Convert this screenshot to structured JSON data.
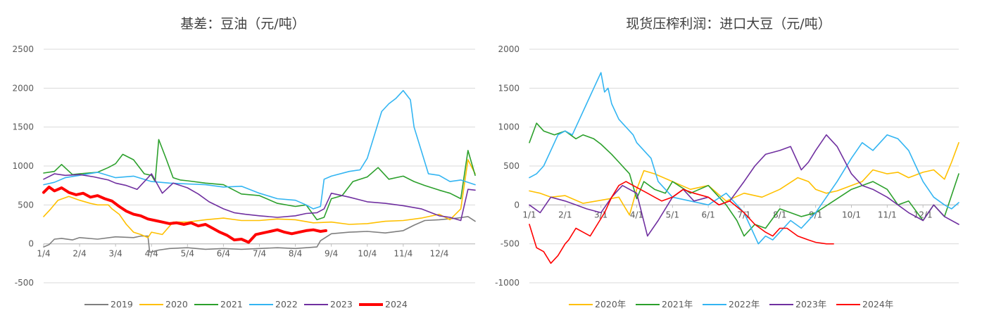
{
  "colors": {
    "c2019": "#7f7f7f",
    "c2020": "#ffc000",
    "c2021": "#2ca02c",
    "c2022": "#33b5f2",
    "c2023": "#7030a0",
    "c2024": "#ff0000",
    "grid": "#d9d9d9",
    "axis": "#bfbfbf",
    "text": "#595959"
  },
  "chart_data": [
    {
      "type": "line",
      "title": "基差：豆油（元/吨）",
      "xlabel": "",
      "ylabel": "",
      "ylim": [
        -500,
        2500
      ],
      "yticks": [
        -500,
        0,
        500,
        1000,
        1500,
        2000,
        2500
      ],
      "xlim": [
        0,
        12
      ],
      "xticks": [
        "1/4",
        "2/4",
        "3/4",
        "4/4",
        "5/4",
        "6/4",
        "7/4",
        "8/4",
        "9/4",
        "10/4",
        "11/4",
        "12/4"
      ],
      "grid": true,
      "legend": "bottom",
      "series": [
        {
          "name": "2019",
          "color_key": "c2019",
          "x": [
            0,
            0.15,
            0.3,
            0.5,
            0.8,
            1.0,
            1.5,
            2.0,
            2.5,
            2.7,
            2.9,
            2.95,
            3.2,
            3.5,
            4.0,
            4.5,
            5.0,
            5.5,
            6.0,
            6.5,
            7.0,
            7.3,
            7.6,
            7.7,
            8.0,
            8.5,
            9.0,
            9.5,
            10.0,
            10.3,
            10.6,
            11.0,
            11.5,
            11.8,
            12.0
          ],
          "y": [
            -40,
            -10,
            60,
            70,
            50,
            80,
            60,
            90,
            80,
            100,
            100,
            -110,
            -80,
            -60,
            -50,
            -70,
            -60,
            -70,
            -60,
            -50,
            -60,
            -50,
            -40,
            40,
            130,
            150,
            160,
            140,
            170,
            240,
            300,
            310,
            330,
            350,
            290
          ]
        },
        {
          "name": "2020",
          "color_key": "c2020",
          "x": [
            0,
            0.2,
            0.4,
            0.7,
            1.0,
            1.3,
            1.5,
            1.8,
            1.9,
            2.1,
            2.3,
            2.5,
            2.7,
            2.9,
            3.0,
            3.3,
            3.6,
            4.0,
            4.5,
            5.0,
            5.5,
            6.0,
            6.5,
            7.0,
            7.5,
            8.0,
            8.5,
            9.0,
            9.5,
            10.0,
            10.5,
            11.0,
            11.3,
            11.6,
            11.8,
            12.0
          ],
          "y": [
            350,
            450,
            560,
            610,
            560,
            520,
            500,
            500,
            450,
            380,
            250,
            150,
            120,
            80,
            150,
            120,
            280,
            280,
            310,
            330,
            300,
            300,
            320,
            310,
            270,
            280,
            250,
            260,
            290,
            300,
            330,
            380,
            310,
            450,
            1080,
            900
          ]
        },
        {
          "name": "2021",
          "color_key": "c2021",
          "x": [
            0,
            0.3,
            0.5,
            0.8,
            1.0,
            1.5,
            1.8,
            2.0,
            2.2,
            2.5,
            2.8,
            3.0,
            3.1,
            3.2,
            3.4,
            3.6,
            3.8,
            4.0,
            4.5,
            5.0,
            5.5,
            6.0,
            6.5,
            7.0,
            7.3,
            7.6,
            7.8,
            8.0,
            8.3,
            8.6,
            9.0,
            9.3,
            9.6,
            10.0,
            10.3,
            10.6,
            11.0,
            11.3,
            11.6,
            11.8,
            12.0
          ],
          "y": [
            910,
            930,
            1020,
            890,
            900,
            920,
            980,
            1030,
            1150,
            1080,
            900,
            880,
            800,
            1340,
            1100,
            850,
            820,
            810,
            780,
            760,
            640,
            620,
            520,
            480,
            500,
            310,
            340,
            580,
            620,
            800,
            860,
            980,
            830,
            870,
            800,
            750,
            690,
            650,
            580,
            1200,
            880
          ]
        },
        {
          "name": "2022",
          "color_key": "c2022",
          "x": [
            0,
            0.3,
            0.6,
            1.0,
            1.5,
            2.0,
            2.5,
            3.0,
            3.5,
            4.0,
            4.5,
            5.0,
            5.5,
            6.0,
            6.5,
            7.0,
            7.3,
            7.5,
            7.7,
            7.8,
            8.0,
            8.5,
            8.8,
            9.0,
            9.2,
            9.4,
            9.6,
            9.8,
            10.0,
            10.2,
            10.3,
            10.5,
            10.7,
            11.0,
            11.3,
            11.6,
            12.0
          ],
          "y": [
            760,
            790,
            850,
            880,
            920,
            850,
            870,
            800,
            780,
            770,
            760,
            730,
            740,
            650,
            580,
            560,
            500,
            450,
            480,
            830,
            870,
            930,
            950,
            1100,
            1400,
            1700,
            1800,
            1870,
            1970,
            1850,
            1500,
            1200,
            900,
            880,
            800,
            820,
            760
          ]
        },
        {
          "name": "2023",
          "color_key": "c2023",
          "x": [
            0,
            0.3,
            0.6,
            1.0,
            1.4,
            1.8,
            2.0,
            2.3,
            2.6,
            3.0,
            3.3,
            3.6,
            4.0,
            4.3,
            4.6,
            5.0,
            5.3,
            5.6,
            6.0,
            6.5,
            7.0,
            7.3,
            7.6,
            7.8,
            8.0,
            8.5,
            9.0,
            9.5,
            10.0,
            10.5,
            11.0,
            11.3,
            11.6,
            11.8,
            12.0
          ],
          "y": [
            830,
            900,
            880,
            890,
            860,
            820,
            780,
            750,
            700,
            900,
            650,
            780,
            720,
            640,
            540,
            450,
            400,
            380,
            360,
            340,
            360,
            390,
            400,
            450,
            650,
            600,
            540,
            520,
            490,
            450,
            360,
            340,
            300,
            700,
            690
          ]
        },
        {
          "name": "2024",
          "color_key": "c2024",
          "x": [
            0,
            0.15,
            0.3,
            0.5,
            0.7,
            0.9,
            1.1,
            1.3,
            1.5,
            1.7,
            1.9,
            2.1,
            2.3,
            2.5,
            2.7,
            2.9,
            3.1,
            3.3,
            3.5,
            3.7,
            3.9,
            4.1,
            4.3,
            4.5,
            4.7,
            4.9,
            5.1,
            5.3,
            5.5,
            5.7,
            5.9,
            6.1,
            6.3,
            6.5,
            6.7,
            6.9,
            7.1,
            7.3,
            7.5,
            7.7,
            7.85
          ],
          "y": [
            660,
            730,
            680,
            720,
            660,
            630,
            650,
            600,
            620,
            580,
            550,
            480,
            420,
            380,
            360,
            320,
            300,
            280,
            260,
            270,
            250,
            270,
            230,
            250,
            200,
            150,
            110,
            50,
            60,
            20,
            120,
            140,
            160,
            180,
            150,
            130,
            150,
            170,
            180,
            160,
            170
          ]
        }
      ]
    },
    {
      "type": "line",
      "title": "现货压榨利润：进口大豆（元/吨）",
      "xlabel": "",
      "ylabel": "",
      "ylim": [
        -1000,
        2000
      ],
      "yticks": [
        -1000,
        -500,
        0,
        500,
        1000,
        1500,
        2000
      ],
      "xlim": [
        0,
        12
      ],
      "xticks": [
        "1/1",
        "2/1",
        "3/1",
        "4/1",
        "5/1",
        "6/1",
        "7/1",
        "8/1",
        "9/1",
        "10/1",
        "11/1",
        "12/1"
      ],
      "grid": true,
      "legend": "bottom",
      "series": [
        {
          "name": "2020年",
          "color_key": "c2020",
          "x": [
            0,
            0.3,
            0.6,
            1.0,
            1.5,
            2.0,
            2.5,
            2.8,
            3.0,
            3.2,
            3.5,
            4.0,
            4.5,
            5.0,
            5.5,
            6.0,
            6.5,
            7.0,
            7.5,
            7.8,
            8.0,
            8.3,
            8.6,
            9.0,
            9.3,
            9.6,
            10.0,
            10.3,
            10.6,
            11.0,
            11.3,
            11.6,
            11.8,
            12.0
          ],
          "y": [
            180,
            150,
            100,
            120,
            20,
            60,
            100,
            -130,
            200,
            440,
            400,
            300,
            200,
            250,
            50,
            150,
            100,
            200,
            350,
            300,
            200,
            150,
            180,
            250,
            300,
            450,
            400,
            420,
            350,
            420,
            450,
            330,
            550,
            800
          ]
        },
        {
          "name": "2021年",
          "color_key": "c2021",
          "x": [
            0,
            0.2,
            0.4,
            0.7,
            1.0,
            1.3,
            1.5,
            1.8,
            2.0,
            2.3,
            2.5,
            2.8,
            3.0,
            3.2,
            3.5,
            3.8,
            4.0,
            4.5,
            5.0,
            5.5,
            5.8,
            6.0,
            6.3,
            6.6,
            7.0,
            7.3,
            7.6,
            8.0,
            8.5,
            9.0,
            9.3,
            9.6,
            10.0,
            10.3,
            10.6,
            11.0,
            11.3,
            11.6,
            12.0
          ],
          "y": [
            800,
            1050,
            950,
            900,
            950,
            850,
            900,
            850,
            780,
            650,
            550,
            400,
            80,
            300,
            200,
            150,
            300,
            150,
            250,
            0,
            -200,
            -400,
            -250,
            -300,
            -50,
            -100,
            -150,
            -100,
            50,
            200,
            250,
            300,
            200,
            0,
            50,
            -200,
            0,
            -150,
            400
          ]
        },
        {
          "name": "2022年",
          "color_key": "c2022",
          "x": [
            0,
            0.2,
            0.4,
            0.6,
            0.8,
            1.0,
            1.2,
            1.4,
            1.6,
            1.8,
            2.0,
            2.1,
            2.2,
            2.3,
            2.5,
            2.7,
            2.9,
            3.0,
            3.2,
            3.4,
            3.6,
            3.8,
            4.0,
            4.5,
            5.0,
            5.5,
            5.8,
            6.0,
            6.2,
            6.4,
            6.6,
            6.8,
            7.0,
            7.3,
            7.6,
            8.0,
            8.3,
            8.6,
            9.0,
            9.3,
            9.6,
            10.0,
            10.3,
            10.6,
            10.8,
            11.0,
            11.3,
            11.6,
            11.8,
            12.0
          ],
          "y": [
            350,
            400,
            500,
            700,
            900,
            950,
            900,
            1100,
            1300,
            1500,
            1700,
            1450,
            1500,
            1300,
            1100,
            1000,
            900,
            800,
            700,
            600,
            300,
            200,
            100,
            50,
            0,
            150,
            0,
            -100,
            -300,
            -500,
            -400,
            -450,
            -350,
            -200,
            -300,
            -100,
            100,
            300,
            600,
            800,
            700,
            900,
            850,
            700,
            500,
            300,
            100,
            0,
            -50,
            30
          ]
        },
        {
          "name": "2023年",
          "color_key": "c2023",
          "x": [
            0,
            0.3,
            0.6,
            1.0,
            1.3,
            1.6,
            2.0,
            2.3,
            2.6,
            3.0,
            3.3,
            3.6,
            4.0,
            4.3,
            4.6,
            5.0,
            5.3,
            5.6,
            6.0,
            6.3,
            6.6,
            7.0,
            7.3,
            7.6,
            7.8,
            8.0,
            8.3,
            8.6,
            9.0,
            9.3,
            9.6,
            10.0,
            10.3,
            10.6,
            11.0,
            11.3,
            11.6,
            12.0
          ],
          "y": [
            0,
            -100,
            100,
            50,
            0,
            -50,
            -100,
            100,
            250,
            150,
            -400,
            -200,
            100,
            200,
            50,
            100,
            0,
            50,
            300,
            500,
            650,
            700,
            750,
            450,
            550,
            700,
            900,
            750,
            400,
            250,
            200,
            100,
            0,
            -100,
            -200,
            0,
            -150,
            -250
          ]
        },
        {
          "name": "2024年",
          "color_key": "c2024",
          "x": [
            0,
            0.1,
            0.2,
            0.4,
            0.6,
            0.8,
            1.0,
            1.1,
            1.3,
            1.5,
            1.7,
            1.9,
            2.1,
            2.3,
            2.5,
            2.7,
            2.9,
            3.1,
            3.3,
            3.5,
            3.7,
            4.0,
            4.3,
            4.6,
            5.0,
            5.3,
            5.6,
            6.0,
            6.3,
            6.6,
            6.8,
            7.0,
            7.2,
            7.5,
            7.8,
            8.0,
            8.3,
            8.5
          ],
          "y": [
            -250,
            -400,
            -550,
            -600,
            -750,
            -650,
            -500,
            -450,
            -300,
            -350,
            -400,
            -250,
            -100,
            100,
            250,
            300,
            250,
            200,
            150,
            100,
            50,
            100,
            200,
            150,
            100,
            0,
            50,
            -100,
            -250,
            -350,
            -400,
            -300,
            -300,
            -400,
            -450,
            -480,
            -500,
            -500
          ]
        }
      ]
    }
  ]
}
